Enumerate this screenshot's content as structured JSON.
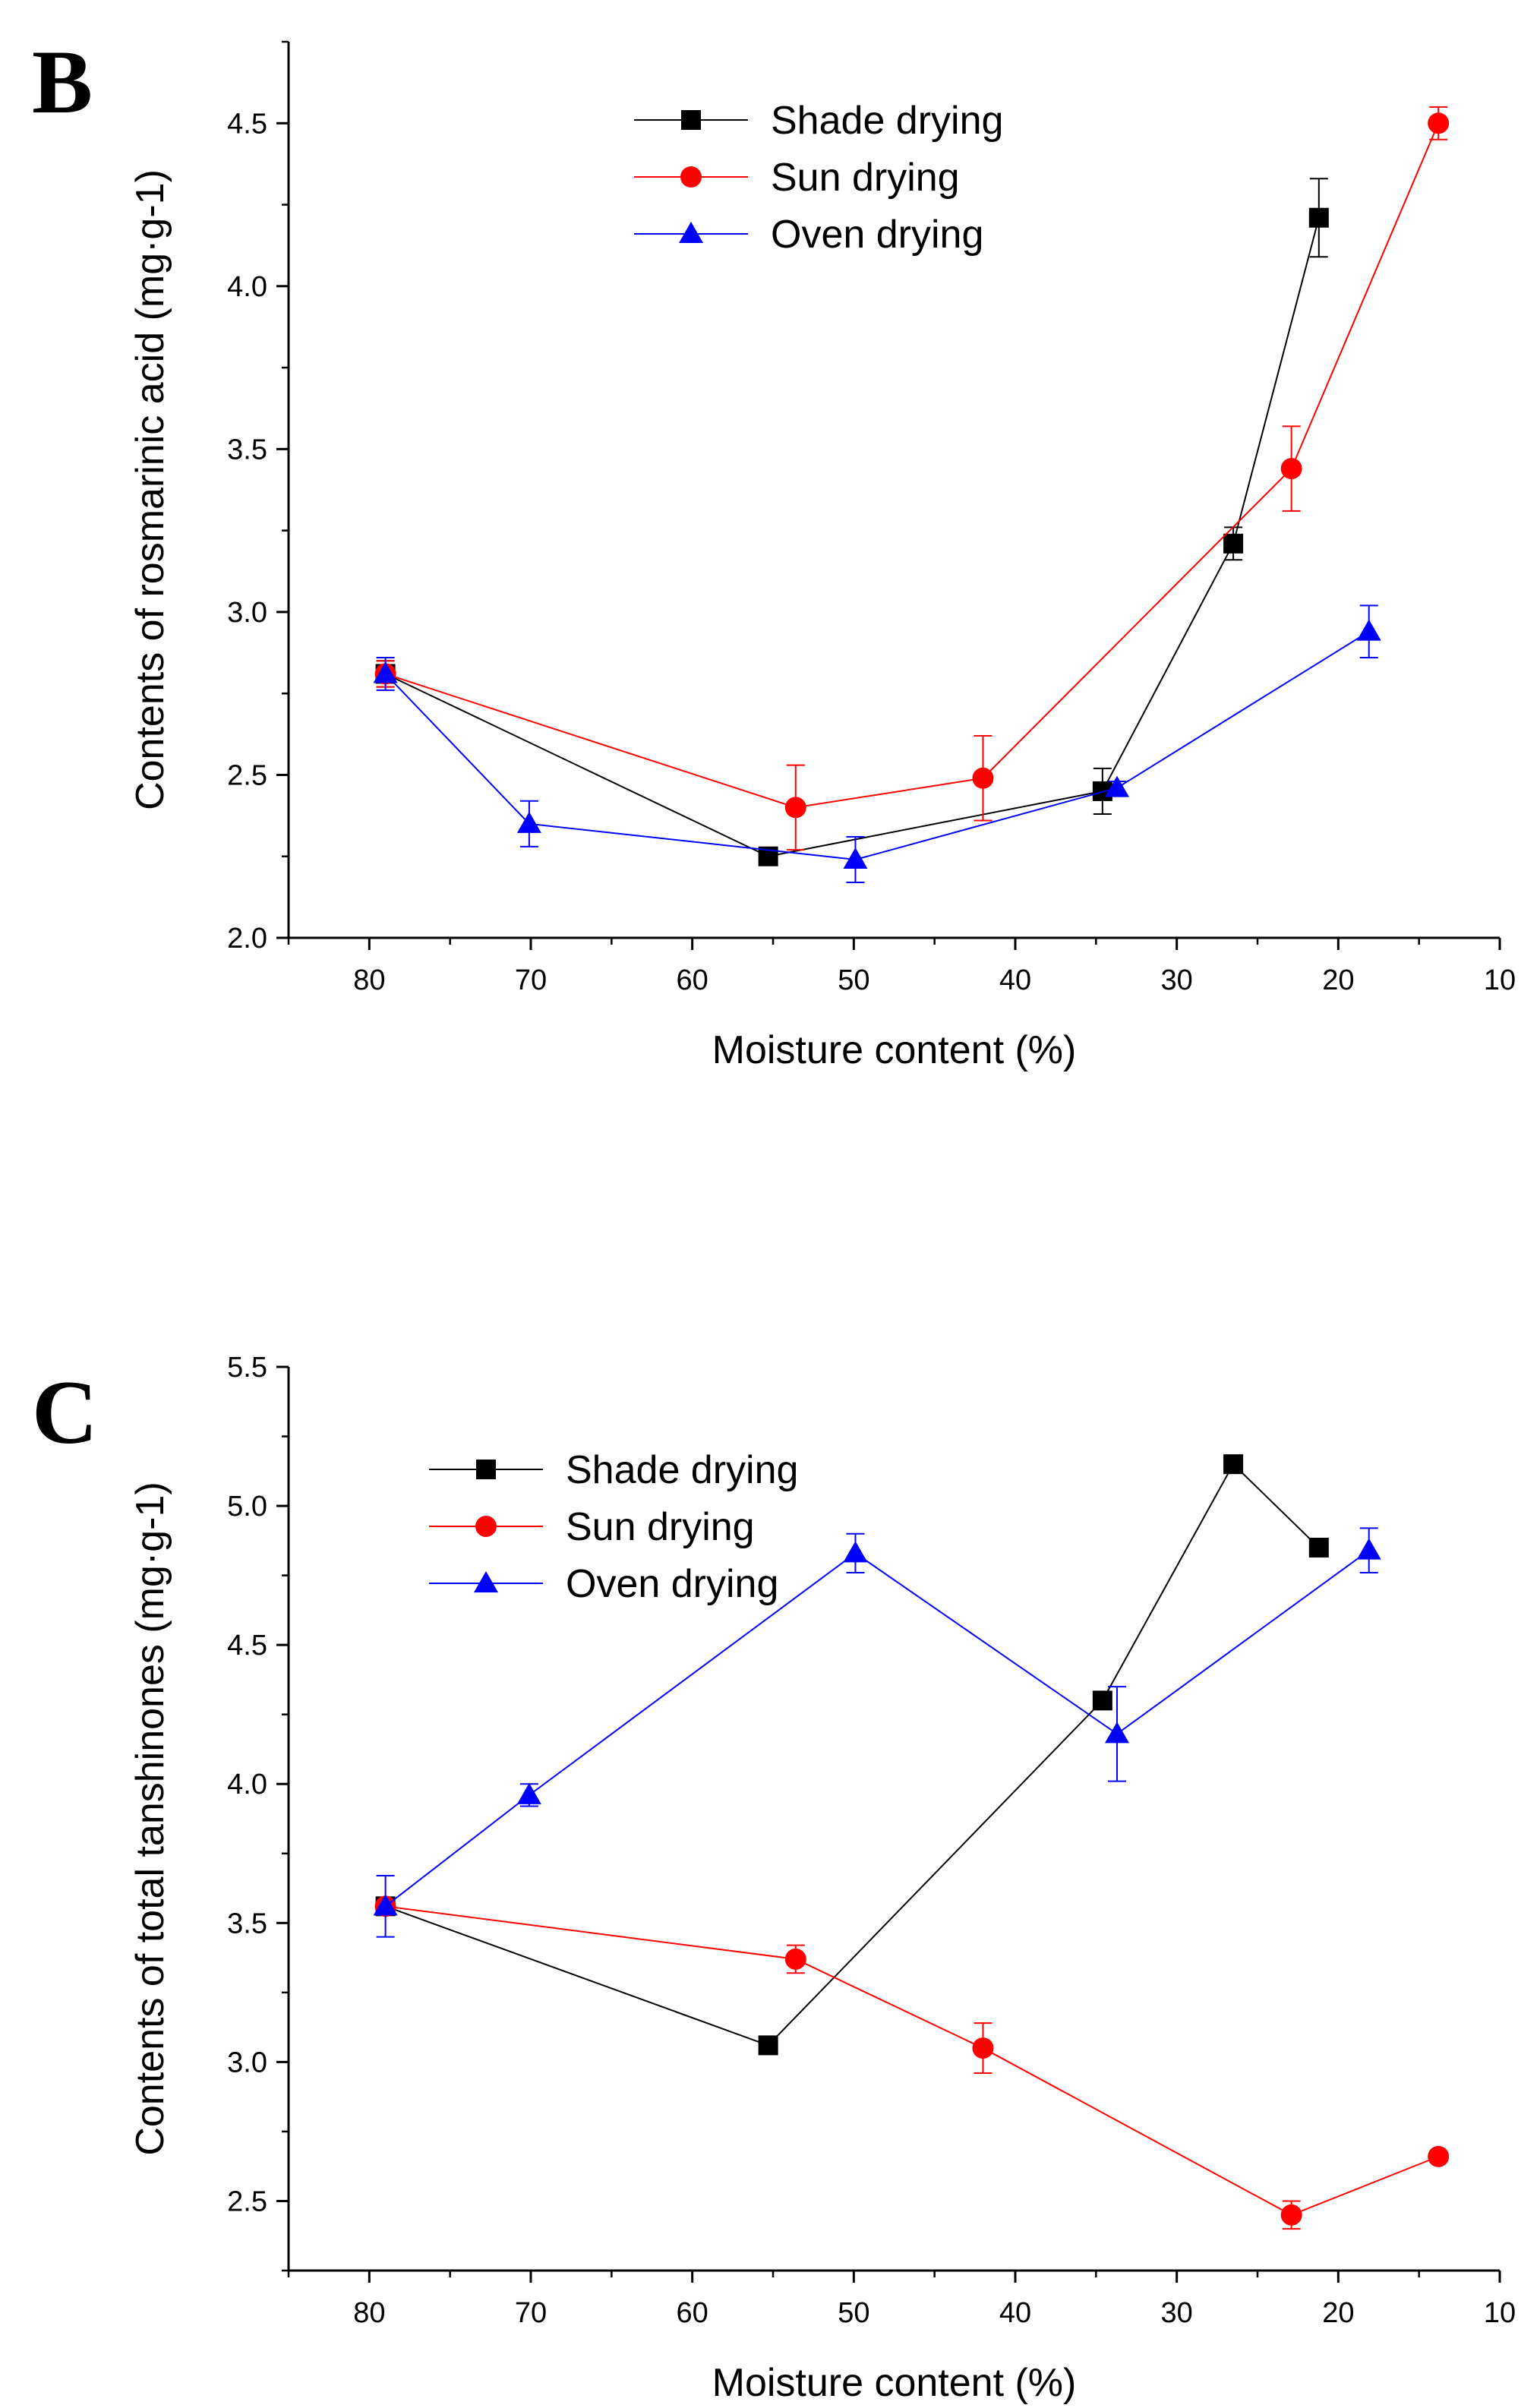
{
  "chart_data": [
    {
      "type": "line",
      "panel_label": "B",
      "title": "",
      "xlabel": "Moisture content (%)",
      "ylabel": "Contents of rosmarinic acid (mg·g-1)",
      "xlim": [
        85,
        10
      ],
      "ylim": [
        2.0,
        4.75
      ],
      "x_ticks": [
        "80",
        "70",
        "60",
        "50",
        "40",
        "30",
        "20",
        "10"
      ],
      "y_ticks": [
        "2.0",
        "2.5",
        "3.0",
        "3.5",
        "4.0",
        "4.5"
      ],
      "legend_position": "top-center",
      "grid": false,
      "series": [
        {
          "name": "Shade drying",
          "color": "#000000",
          "marker": "square",
          "x": [
            79.0,
            55.3,
            34.6,
            26.5,
            21.2
          ],
          "y": [
            2.81,
            2.25,
            2.45,
            3.21,
            4.21
          ],
          "err": [
            0.04,
            0.0,
            0.07,
            0.05,
            0.12
          ]
        },
        {
          "name": "Sun drying",
          "color": "#ff0000",
          "marker": "circle",
          "x": [
            79.0,
            53.6,
            42.0,
            22.9,
            13.8
          ],
          "y": [
            2.81,
            2.4,
            2.49,
            3.44,
            4.5
          ],
          "err": [
            0.04,
            0.13,
            0.13,
            0.13,
            0.05
          ]
        },
        {
          "name": "Oven drying",
          "color": "#0000ff",
          "marker": "triangle",
          "x": [
            79.0,
            70.1,
            49.9,
            33.7,
            18.1
          ],
          "y": [
            2.81,
            2.35,
            2.24,
            2.46,
            2.94
          ],
          "err": [
            0.05,
            0.07,
            0.07,
            0.02,
            0.08
          ]
        }
      ]
    },
    {
      "type": "line",
      "panel_label": "C",
      "title": "",
      "xlabel": "Moisture content (%)",
      "ylabel": "Contents of total tanshinones (mg·g-1)",
      "xlim": [
        85,
        10
      ],
      "ylim": [
        2.25,
        5.5
      ],
      "x_ticks": [
        "80",
        "70",
        "60",
        "50",
        "40",
        "30",
        "20",
        "10"
      ],
      "y_ticks": [
        "2.5",
        "3.0",
        "3.5",
        "4.0",
        "4.5",
        "5.0",
        "5.5"
      ],
      "legend_position": "top-left",
      "grid": false,
      "series": [
        {
          "name": "Shade drying",
          "color": "#000000",
          "marker": "square",
          "x": [
            79.0,
            55.3,
            34.6,
            26.5,
            21.2
          ],
          "y": [
            3.56,
            3.06,
            4.3,
            5.15,
            4.85
          ],
          "err": [
            0.0,
            0.0,
            0.0,
            0.0,
            0.0
          ]
        },
        {
          "name": "Sun drying",
          "color": "#ff0000",
          "marker": "circle",
          "x": [
            79.0,
            53.6,
            42.0,
            22.9,
            13.8
          ],
          "y": [
            3.56,
            3.37,
            3.05,
            2.45,
            2.66
          ],
          "err": [
            0.0,
            0.05,
            0.09,
            0.05,
            0.0
          ]
        },
        {
          "name": "Oven drying",
          "color": "#0000ff",
          "marker": "triangle",
          "x": [
            79.0,
            70.1,
            49.9,
            33.7,
            18.1
          ],
          "y": [
            3.56,
            3.96,
            4.83,
            4.18,
            4.84
          ],
          "err": [
            0.11,
            0.04,
            0.07,
            0.17,
            0.08
          ]
        }
      ]
    }
  ]
}
